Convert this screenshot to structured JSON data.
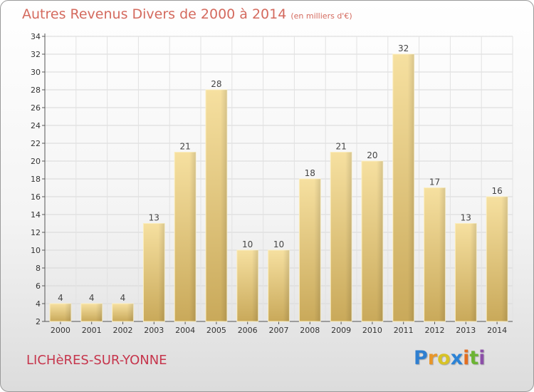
{
  "chart_data": {
    "type": "bar",
    "title": "Autres Revenus Divers de 2000 à 2014",
    "subtitle": "(en milliers d'€)",
    "categories": [
      "2000",
      "2001",
      "2002",
      "2003",
      "2004",
      "2005",
      "2006",
      "2007",
      "2008",
      "2009",
      "2010",
      "2011",
      "2012",
      "2013",
      "2014"
    ],
    "values": [
      4,
      4,
      4,
      13,
      21,
      28,
      10,
      10,
      18,
      21,
      20,
      32,
      17,
      13,
      16
    ],
    "ylim": [
      2,
      34
    ],
    "yticks": [
      2,
      4,
      6,
      8,
      10,
      12,
      14,
      16,
      18,
      20,
      22,
      24,
      26,
      28,
      30,
      32,
      34
    ],
    "grid": true,
    "bar_color": "#e8cf86"
  },
  "footer": {
    "town": "LICHèRES-SUR-YONNE",
    "logo": [
      "P",
      "r",
      "o",
      "x",
      "i",
      "t",
      "i"
    ]
  }
}
